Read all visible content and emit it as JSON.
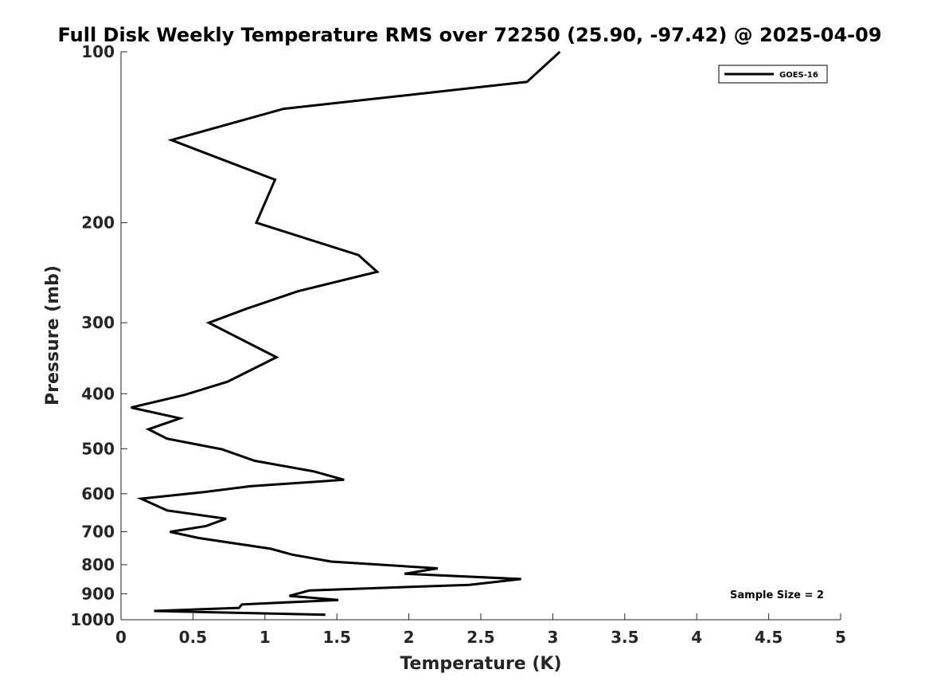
{
  "chart_data": {
    "type": "line",
    "title": "Full Disk Weekly Temperature RMS over 72250 (25.90, -97.42) @ 2025-04-09",
    "xlabel": "Temperature (K)",
    "ylabel": "Pressure (mb)",
    "xlim": [
      0,
      5
    ],
    "ylim": [
      100,
      1000
    ],
    "yscale": "log",
    "y_reversed": true,
    "grid": false,
    "x_ticks": [
      0,
      0.5,
      1,
      1.5,
      2,
      2.5,
      3,
      3.5,
      4,
      4.5,
      5
    ],
    "x_tick_labels": [
      "0",
      "0.5",
      "1",
      "1.5",
      "2",
      "2.5",
      "3",
      "3.5",
      "4",
      "4.5",
      "5"
    ],
    "y_ticks": [
      100,
      200,
      300,
      400,
      500,
      600,
      700,
      800,
      900,
      1000
    ],
    "y_tick_labels": [
      "100",
      "200",
      "300",
      "400",
      "500",
      "600",
      "700",
      "800",
      "900",
      "1000"
    ],
    "legend_position": "top-right",
    "annotation": "Sample Size = 2",
    "series": [
      {
        "name": "GOES-16",
        "color": "#000000",
        "x": [
          3.05,
          2.82,
          1.13,
          0.35,
          1.07,
          0.94,
          1.65,
          1.78,
          1.23,
          0.88,
          0.61,
          1.08,
          0.74,
          0.44,
          0.07,
          0.41,
          0.19,
          0.32,
          0.7,
          0.93,
          1.34,
          1.55,
          0.9,
          0.55,
          0.14,
          0.32,
          0.73,
          0.59,
          0.34,
          0.54,
          1.04,
          1.19,
          1.46,
          2.2,
          1.97,
          2.78,
          2.42,
          1.31,
          1.17,
          1.51,
          0.84,
          0.82,
          0.23,
          1.42
        ],
        "y": [
          100,
          113,
          126,
          143,
          168,
          200,
          228,
          244,
          264,
          283,
          300,
          345,
          381,
          402,
          423,
          442,
          462,
          480,
          501,
          525,
          548,
          567,
          582,
          597,
          612,
          642,
          664,
          684,
          700,
          718,
          750,
          768,
          790,
          812,
          830,
          848,
          868,
          888,
          908,
          923,
          940,
          953,
          965,
          980
        ]
      }
    ]
  }
}
